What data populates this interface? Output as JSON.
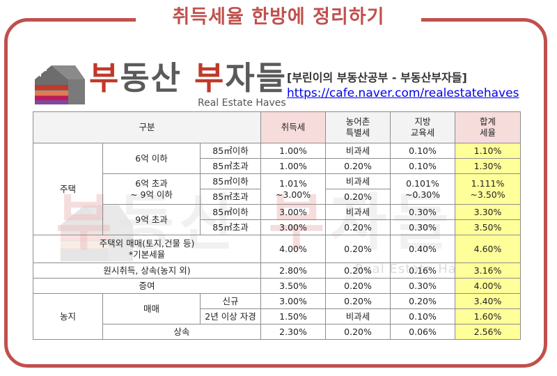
{
  "title": "취득세율 한방에 정리하기",
  "logo": {
    "part1": "부",
    "part2": "동산 ",
    "part3": "부",
    "part4": "자들",
    "sub": "Real Estate Haves"
  },
  "blog": {
    "name": "[부린이의 부동산공부 - 부동산부자들]",
    "url": "https://cafe.naver.com/realestatehaves"
  },
  "watermark": {
    "w1": "부",
    "w2": "동산 ",
    "w3": "부",
    "w4": "자들",
    "sub": "Real Estate Haves"
  },
  "colors": {
    "frame": "#c0504d",
    "header_pink": "#f7dcdc",
    "total_yellow": "#ffff9a"
  },
  "table": {
    "headers": {
      "category": "구분",
      "acq": "취득세",
      "rural": "농어촌\n특별세",
      "edu": "지방\n교육세",
      "total": "합계\n세율"
    },
    "housing": {
      "label": "주택",
      "g1": {
        "label": "6억 이하",
        "rows": [
          {
            "size": "85㎡이하",
            "acq": "1.00%",
            "rural": "비과세",
            "edu": "0.10%",
            "total": "1.10%"
          },
          {
            "size": "85㎡초과",
            "acq": "1.00%",
            "rural": "0.20%",
            "edu": "0.10%",
            "total": "1.30%"
          }
        ]
      },
      "g2": {
        "label": "6억 초과\n~ 9억 이하",
        "size1": "85㎡이하",
        "size2": "85㎡초과",
        "rural1": "비과세",
        "rural2": "0.20%",
        "acq": "1.01%\n~3.00%",
        "edu": "0.101%\n~0.30%",
        "total": "1.111%\n~3.50%"
      },
      "g3": {
        "label": "9억 초과",
        "rows": [
          {
            "size": "85㎡이하",
            "acq": "3.00%",
            "rural": "비과세",
            "edu": "0.30%",
            "total": "3.30%"
          },
          {
            "size": "85㎡초과",
            "acq": "3.00%",
            "rural": "0.20%",
            "edu": "0.30%",
            "total": "3.50%"
          }
        ]
      }
    },
    "non_housing": {
      "label": "주택외 매매(토지,건물 등)\n*기본세율",
      "acq": "4.00%",
      "rural": "0.20%",
      "edu": "0.40%",
      "total": "4.60%"
    },
    "original": {
      "label": "원시취득, 상속(농지 외)",
      "acq": "2.80%",
      "rural": "0.20%",
      "edu": "0.16%",
      "total": "3.16%"
    },
    "gift": {
      "label": "증여",
      "acq": "3.50%",
      "rural": "0.20%",
      "edu": "0.30%",
      "total": "4.00%"
    },
    "farmland": {
      "label": "농지",
      "trade": "매매",
      "new": {
        "label": "신규",
        "acq": "3.00%",
        "rural": "0.20%",
        "edu": "0.20%",
        "total": "3.40%"
      },
      "self": {
        "label": "2년 이상 자경",
        "acq": "1.50%",
        "rural": "비과세",
        "edu": "0.10%",
        "total": "1.60%"
      },
      "inherit": {
        "label": "상속",
        "acq": "2.30%",
        "rural": "0.20%",
        "edu": "0.06%",
        "total": "2.56%"
      }
    }
  }
}
